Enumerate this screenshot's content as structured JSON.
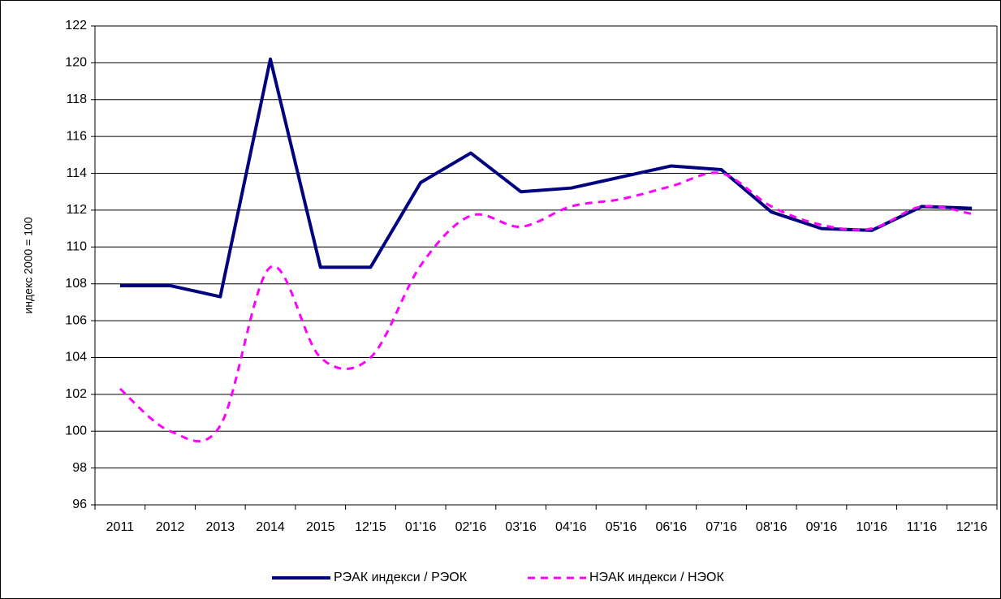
{
  "chart_data": {
    "type": "line",
    "y_label": "индекс 2000 = 100",
    "categories": [
      "2011",
      "2012",
      "2013",
      "2014",
      "2015",
      "12'15",
      "01'16",
      "02'16",
      "03'16",
      "04'16",
      "05'16",
      "06'16",
      "07'16",
      "08'16",
      "09'16",
      "10'16",
      "11'16",
      "12'16"
    ],
    "series": [
      {
        "name": "РЭАК индекси / РЭОК",
        "color": "#000080",
        "style": "solid",
        "smooth": false,
        "values": [
          107.9,
          107.9,
          107.3,
          120.2,
          108.9,
          108.9,
          113.5,
          115.1,
          113.0,
          113.2,
          113.8,
          114.4,
          114.2,
          111.9,
          111.0,
          110.9,
          112.2,
          112.1
        ]
      },
      {
        "name": "НЭАК индекси / НЭОК",
        "color": "#ff00ff",
        "style": "dashed",
        "smooth": true,
        "values": [
          102.3,
          100.0,
          100.3,
          108.9,
          104.0,
          104.0,
          109.0,
          111.7,
          111.1,
          112.2,
          112.6,
          113.3,
          114.0,
          112.2,
          111.2,
          111.0,
          112.2,
          111.8
        ]
      }
    ],
    "ylim": [
      96,
      122
    ],
    "yticks": [
      96,
      98,
      100,
      102,
      104,
      106,
      108,
      110,
      112,
      114,
      116,
      118,
      120,
      122
    ],
    "grid": true,
    "legend": "bottom"
  }
}
